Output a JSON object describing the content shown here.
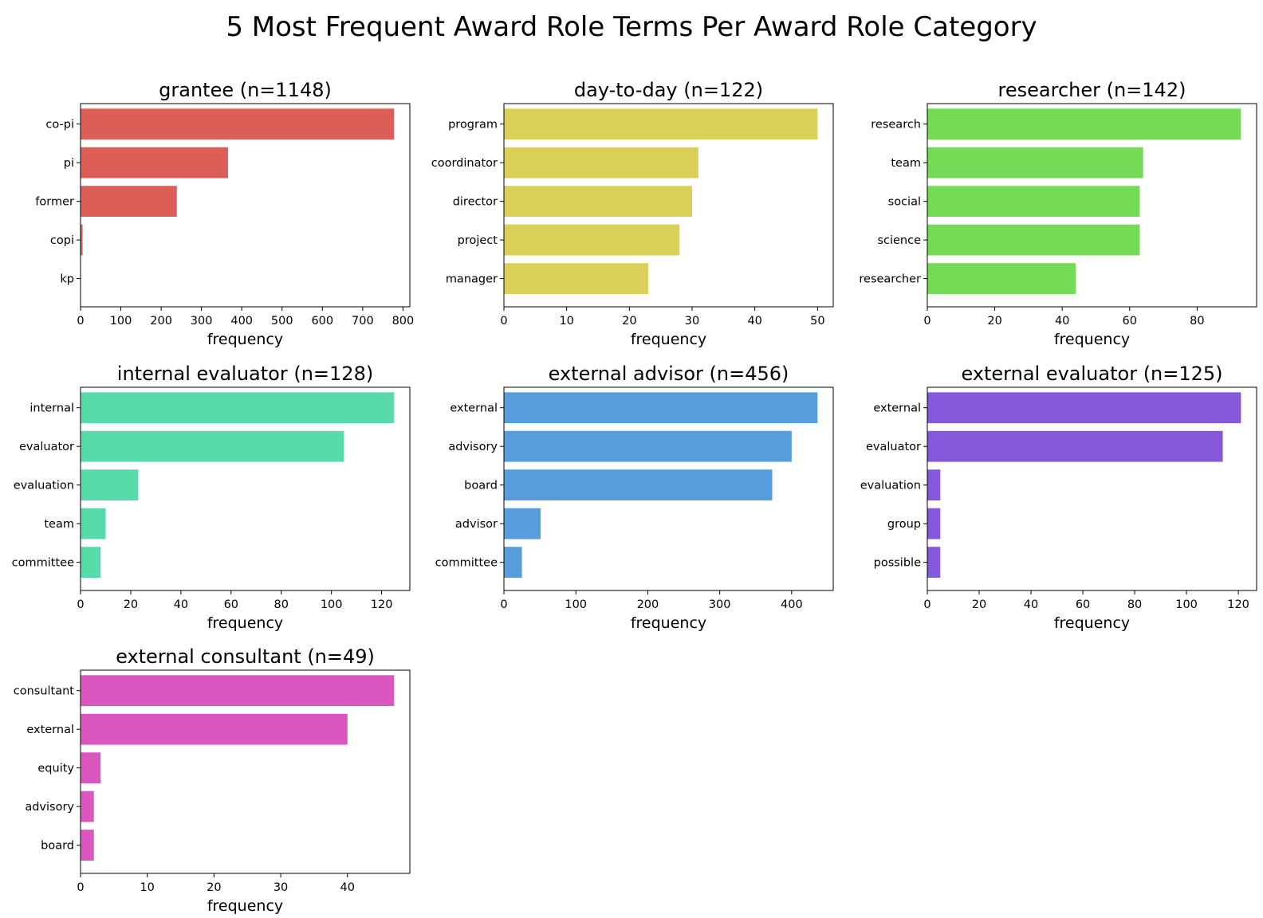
{
  "title": "5 Most Frequent Award Role Terms Per Award Role Category",
  "chart_data": [
    {
      "type": "bar",
      "orientation": "horizontal",
      "title": "grantee (n=1148)",
      "xlabel": "frequency",
      "color": "#db5f57",
      "categories": [
        "co-pi",
        "pi",
        "former",
        "copi",
        "kp"
      ],
      "values": [
        778,
        366,
        239,
        5,
        1
      ],
      "xlim": [
        0,
        817
      ],
      "xticks": [
        0,
        100,
        200,
        300,
        400,
        500,
        600,
        700,
        800
      ]
    },
    {
      "type": "bar",
      "orientation": "horizontal",
      "title": "day-to-day (n=122)",
      "xlabel": "frequency",
      "color": "#dbd057",
      "categories": [
        "program",
        "coordinator",
        "director",
        "project",
        "manager"
      ],
      "values": [
        50,
        31,
        30,
        28,
        23
      ],
      "xlim": [
        0,
        52.5
      ],
      "xticks": [
        0,
        10,
        20,
        30,
        40,
        50
      ]
    },
    {
      "type": "bar",
      "orientation": "horizontal",
      "title": "researcher (n=142)",
      "xlabel": "frequency",
      "color": "#75db57",
      "categories": [
        "research",
        "team",
        "social",
        "science",
        "researcher"
      ],
      "values": [
        93,
        64,
        63,
        63,
        44
      ],
      "xlim": [
        0,
        97.65
      ],
      "xticks": [
        0,
        20,
        40,
        60,
        80
      ]
    },
    {
      "type": "bar",
      "orientation": "horizontal",
      "title": "internal evaluator (n=128)",
      "xlabel": "frequency",
      "color": "#57dba8",
      "categories": [
        "internal",
        "evaluator",
        "evaluation",
        "team",
        "committee"
      ],
      "values": [
        125,
        105,
        23,
        10,
        8
      ],
      "xlim": [
        0,
        131.25
      ],
      "xticks": [
        0,
        20,
        40,
        60,
        80,
        100,
        120
      ]
    },
    {
      "type": "bar",
      "orientation": "horizontal",
      "title": "external advisor (n=456)",
      "xlabel": "frequency",
      "color": "#579cdb",
      "categories": [
        "external",
        "advisory",
        "board",
        "advisor",
        "committee"
      ],
      "values": [
        436,
        400,
        373,
        51,
        25
      ],
      "xlim": [
        0,
        457.8
      ],
      "xticks": [
        0,
        100,
        200,
        300,
        400
      ]
    },
    {
      "type": "bar",
      "orientation": "horizontal",
      "title": "external evaluator (n=125)",
      "xlabel": "frequency",
      "color": "#8557db",
      "categories": [
        "external",
        "evaluator",
        "evaluation",
        "group",
        "possible"
      ],
      "values": [
        121,
        114,
        5,
        5,
        5
      ],
      "xlim": [
        0,
        127.05
      ],
      "xticks": [
        0,
        20,
        40,
        60,
        80,
        100,
        120
      ]
    },
    {
      "type": "bar",
      "orientation": "horizontal",
      "title": "external consultant (n=49)",
      "xlabel": "frequency",
      "color": "#db57c0",
      "categories": [
        "consultant",
        "external",
        "equity",
        "advisory",
        "board"
      ],
      "values": [
        47,
        40,
        3,
        2,
        2
      ],
      "xlim": [
        0,
        49.35
      ],
      "xticks": [
        0,
        10,
        20,
        30,
        40
      ]
    }
  ]
}
